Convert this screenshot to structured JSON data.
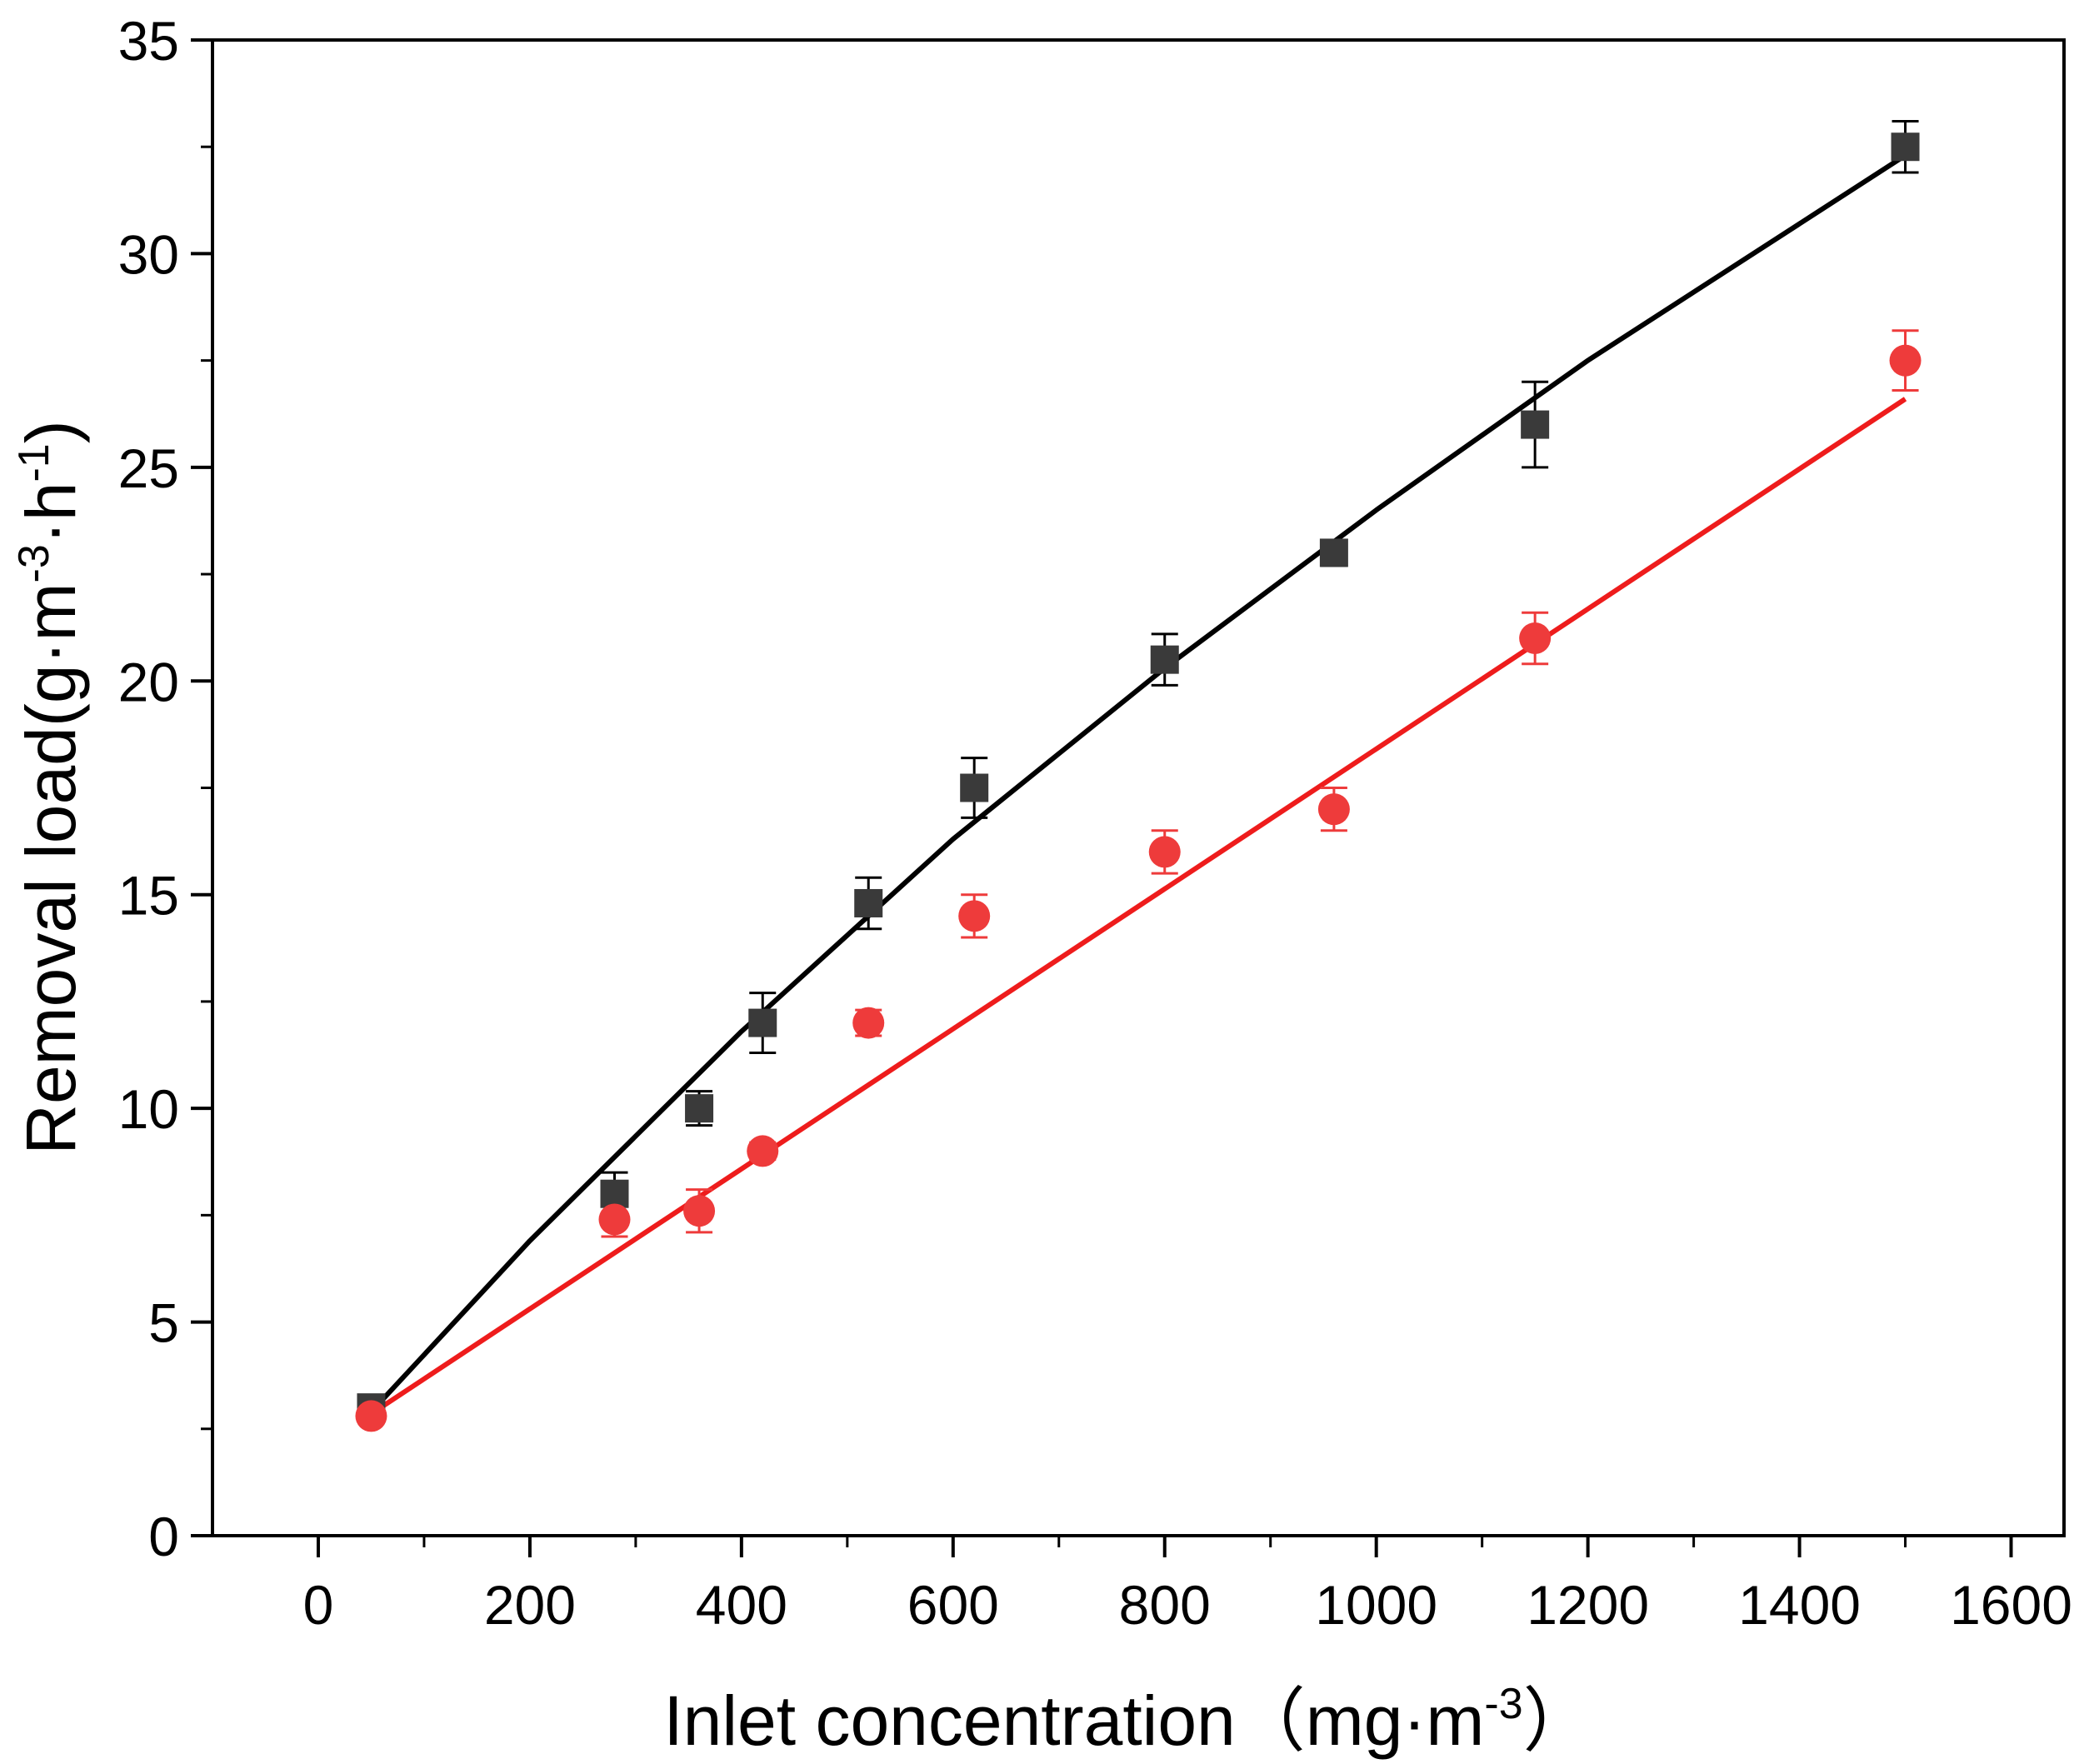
{
  "chart_data": {
    "type": "scatter",
    "title": "",
    "xlabel": {
      "base": "Inlet concentration（mg·m",
      "sup": "-3",
      "close": "）"
    },
    "ylabel": {
      "p1": "Removal load(g·m",
      "s1": "-3",
      "p2": "·h",
      "s2": "-1",
      "p3": ")"
    },
    "xlim": [
      -100,
      1650
    ],
    "ylim": [
      0,
      35
    ],
    "x_major_ticks": [
      0,
      200,
      400,
      600,
      800,
      1000,
      1200,
      1400,
      1600
    ],
    "x_tick_labels": [
      "0",
      "200",
      "400",
      "600",
      "800",
      "1000",
      "1200",
      "1400",
      "1600"
    ],
    "y_major_ticks": [
      0,
      5,
      10,
      15,
      20,
      25,
      30,
      35
    ],
    "y_tick_labels": [
      "0",
      "5",
      "10",
      "15",
      "20",
      "25",
      "30",
      "35"
    ],
    "grid": false,
    "series": [
      {
        "name": "black squares",
        "marker": "square",
        "color": "#3a3a3a",
        "x": [
          50,
          280,
          360,
          420,
          520,
          620,
          800,
          960,
          1150,
          1500
        ],
        "y": [
          3.0,
          8.0,
          10.0,
          12.0,
          14.8,
          17.5,
          20.5,
          23.0,
          26.0,
          32.5
        ],
        "err": [
          0.15,
          0.5,
          0.4,
          0.7,
          0.6,
          0.7,
          0.6,
          0.3,
          1.0,
          0.6
        ]
      },
      {
        "name": "red circles",
        "marker": "circle",
        "color": "#ee3b3b",
        "x": [
          50,
          280,
          360,
          420,
          520,
          620,
          800,
          960,
          1150,
          1500
        ],
        "y": [
          2.8,
          7.4,
          7.6,
          9.0,
          12.0,
          14.5,
          16.0,
          17.0,
          21.0,
          27.5
        ],
        "err": [
          0.15,
          0.4,
          0.5,
          0.2,
          0.3,
          0.5,
          0.5,
          0.5,
          0.6,
          0.7
        ]
      }
    ],
    "fits": [
      {
        "name": "black fit",
        "color": "#000000",
        "x": [
          50,
          200,
          400,
          600,
          800,
          1000,
          1200,
          1400,
          1500
        ],
        "y": [
          2.9,
          6.9,
          11.8,
          16.3,
          20.3,
          24.0,
          27.5,
          30.7,
          32.3
        ]
      },
      {
        "name": "red fit",
        "color": "#ee1c1c",
        "x": [
          50,
          1500
        ],
        "y": [
          2.85,
          26.6
        ]
      }
    ]
  }
}
